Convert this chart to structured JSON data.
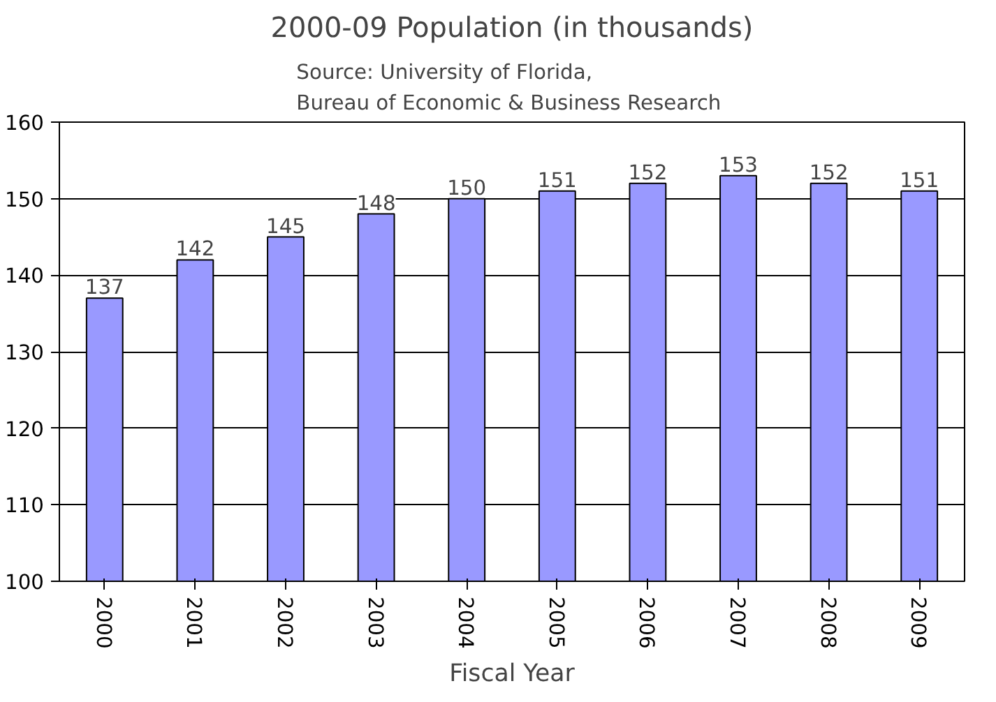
{
  "chart_data": {
    "type": "bar",
    "title": "2000-09 Population (in thousands)",
    "subtitle": "Source: University of Florida,\nBureau of Economic &  Business Research",
    "xlabel": "Fiscal Year",
    "categories": [
      "2000",
      "2001",
      "2002",
      "2003",
      "2004",
      "2005",
      "2006",
      "2007",
      "2008",
      "2009"
    ],
    "values": [
      137,
      142,
      145,
      148,
      150,
      151,
      152,
      153,
      152,
      151
    ],
    "color": "#9999ff",
    "data_labels": true,
    "ylim": [
      100,
      160
    ],
    "yticks": [
      100,
      110,
      120,
      130,
      140,
      150,
      160
    ],
    "grid": "y"
  }
}
